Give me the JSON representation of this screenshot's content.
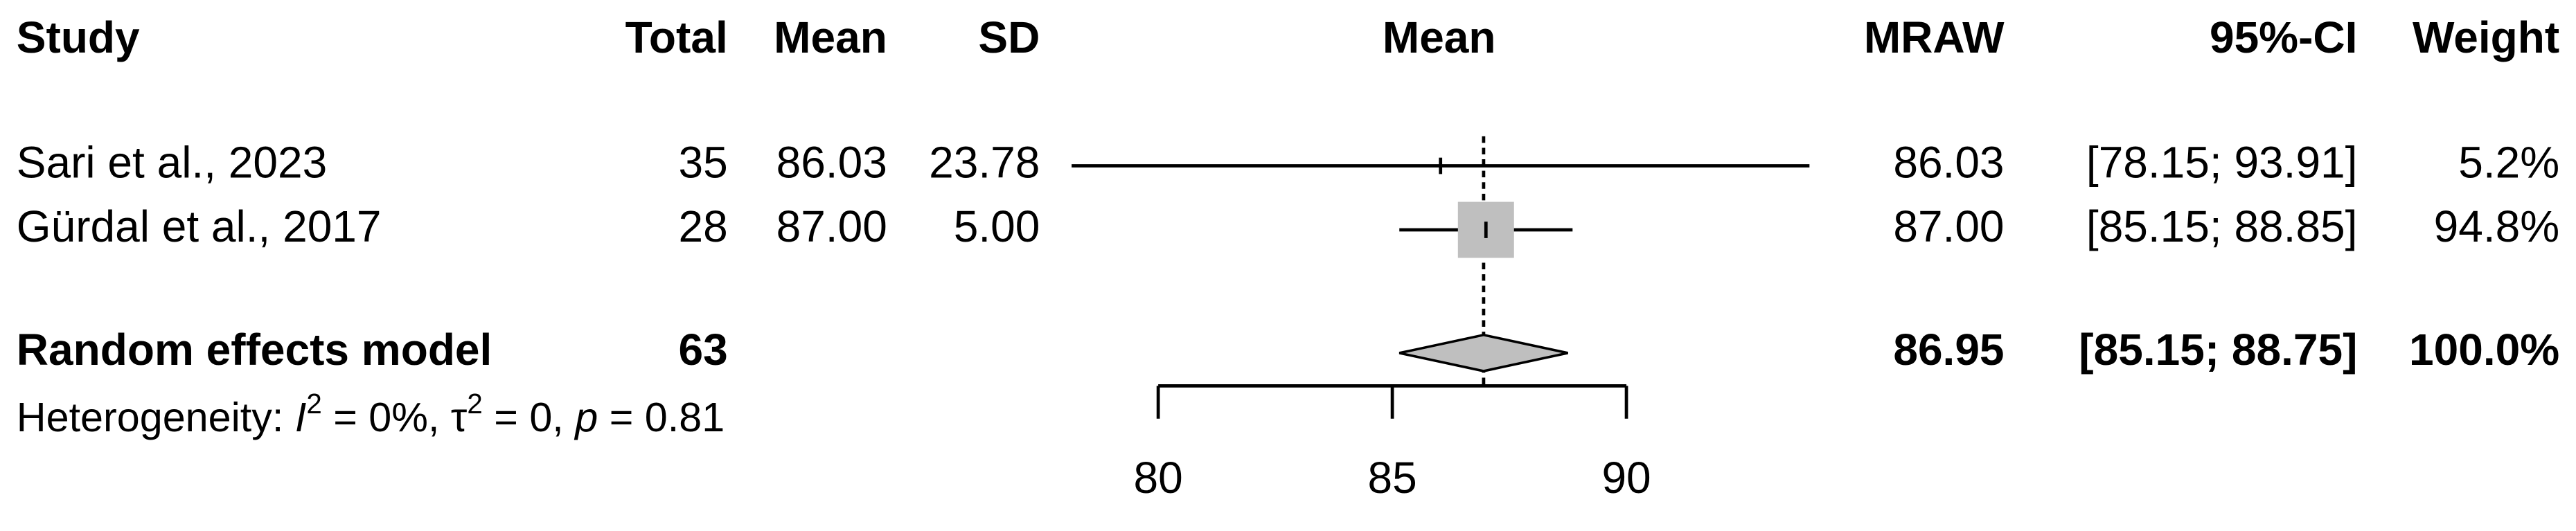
{
  "chart_data": {
    "type": "forest",
    "columns": {
      "study": "Study",
      "total": "Total",
      "mean": "Mean",
      "sd": "SD",
      "effect": "Mean",
      "mraw": "MRAW",
      "ci": "95%-CI",
      "weight": "Weight"
    },
    "studies": [
      "Sari et al., 2023",
      "Gürdal et al., 2017"
    ],
    "total": [
      35,
      28
    ],
    "mean": [
      "86.03",
      "87.00"
    ],
    "sd": [
      "23.78",
      "5.00"
    ],
    "values": [
      86.03,
      87.0
    ],
    "value_labels": [
      "86.03",
      "87.00"
    ],
    "ci_lower": [
      78.15,
      85.15
    ],
    "ci_upper": [
      93.91,
      88.85
    ],
    "ci_labels": [
      "[78.15; 93.91]",
      "[85.15; 88.85]"
    ],
    "weights": [
      5.2,
      94.8
    ],
    "weight_labels": [
      "5.2%",
      "94.8%"
    ],
    "pooled": {
      "label": "Random effects model",
      "total": 63,
      "value": 86.95,
      "value_label": "86.95",
      "ci_lower": 85.15,
      "ci_upper": 88.75,
      "ci_label": "[85.15; 88.75]",
      "weight": 100,
      "weight_label": "100.0%"
    },
    "heterogeneity": [
      "Heterogeneity: ",
      "I",
      "2",
      " = 0%, ",
      "τ",
      "2",
      " = 0, ",
      "p",
      " = 0.81"
    ],
    "xlim": [
      80,
      90
    ],
    "xticks": [
      80,
      85,
      90
    ],
    "square_color": "#bfbfbf",
    "diamond_color": "#bfbfbf"
  }
}
